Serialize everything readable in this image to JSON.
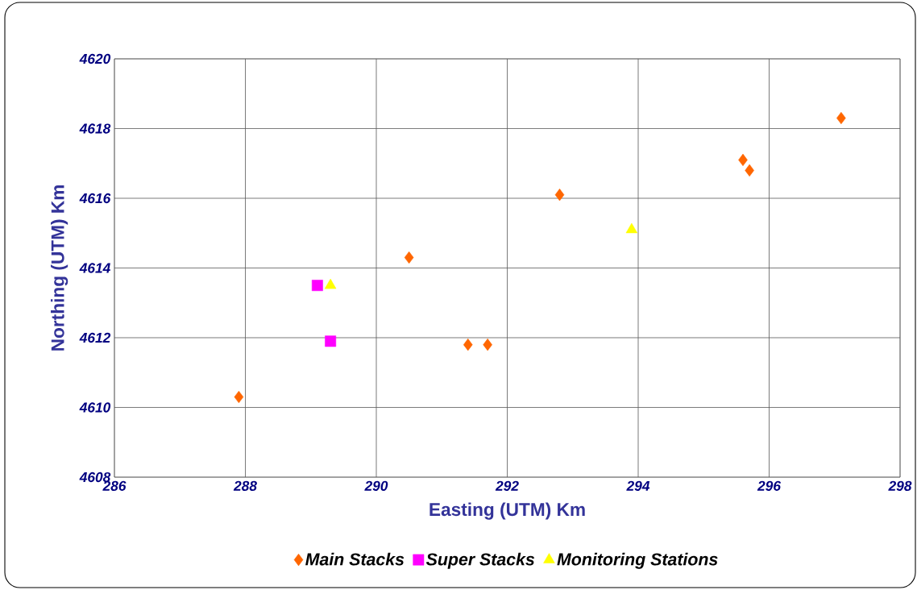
{
  "chart_data": {
    "type": "scatter",
    "xlabel": "Easting (UTM) Km",
    "ylabel": "Northing (UTM) Km",
    "xlim": [
      286,
      298
    ],
    "xticks": [
      286,
      288,
      290,
      292,
      294,
      296,
      298
    ],
    "ylim": [
      4608,
      4620
    ],
    "yticks": [
      4608,
      4610,
      4612,
      4614,
      4616,
      4618,
      4620
    ],
    "grid": true,
    "legend": "bottom",
    "series": [
      {
        "name": "Main Stacks",
        "color": "#ff6600",
        "marker": "diamond",
        "x": [
          287.9,
          290.5,
          291.4,
          291.7,
          292.8,
          295.6,
          295.7,
          297.1
        ],
        "values": [
          4610.3,
          4614.3,
          4611.8,
          4611.8,
          4616.1,
          4617.1,
          4616.8,
          4618.3
        ]
      },
      {
        "name": "Super Stacks",
        "color": "#ff00ff",
        "marker": "square",
        "x": [
          289.1,
          289.3
        ],
        "values": [
          4613.5,
          4611.9
        ]
      },
      {
        "name": "Monitoring Stations",
        "color": "#ffff00",
        "marker": "triangle",
        "x": [
          289.3,
          293.9
        ],
        "values": [
          4613.5,
          4615.1
        ]
      }
    ]
  }
}
